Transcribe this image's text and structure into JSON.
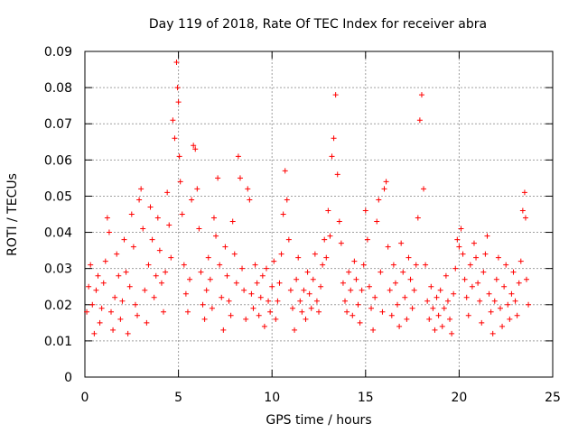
{
  "chart_data": {
    "type": "scatter",
    "title": "Day 119 of 2018, Rate Of TEC Index for receiver abra",
    "xlabel": "GPS time / hours",
    "ylabel": "ROTI / TECUs",
    "xlim": [
      0,
      25
    ],
    "ylim": [
      0,
      0.09
    ],
    "grid": true,
    "marker": "+",
    "color": "#ff0000",
    "x_ticks": [
      "0",
      "5",
      "10",
      "15",
      "20",
      "25"
    ],
    "y_ticks": [
      "0",
      "0.01",
      "0.02",
      "0.03",
      "0.04",
      "0.05",
      "0.06",
      "0.07",
      "0.08",
      "0.09"
    ],
    "series": [
      {
        "values": [
          [
            0.1,
            0.018
          ],
          [
            0.2,
            0.025
          ],
          [
            0.3,
            0.031
          ],
          [
            0.4,
            0.02
          ],
          [
            0.5,
            0.012
          ],
          [
            0.6,
            0.024
          ],
          [
            0.7,
            0.028
          ],
          [
            0.8,
            0.015
          ],
          [
            0.9,
            0.019
          ],
          [
            1.0,
            0.026
          ],
          [
            1.1,
            0.032
          ],
          [
            1.2,
            0.044
          ],
          [
            1.3,
            0.04
          ],
          [
            1.4,
            0.018
          ],
          [
            1.5,
            0.013
          ],
          [
            1.6,
            0.022
          ],
          [
            1.7,
            0.034
          ],
          [
            1.8,
            0.028
          ],
          [
            1.9,
            0.016
          ],
          [
            2.0,
            0.021
          ],
          [
            2.1,
            0.038
          ],
          [
            2.2,
            0.029
          ],
          [
            2.3,
            0.012
          ],
          [
            2.4,
            0.025
          ],
          [
            2.5,
            0.045
          ],
          [
            2.6,
            0.036
          ],
          [
            2.7,
            0.02
          ],
          [
            2.8,
            0.017
          ],
          [
            2.9,
            0.049
          ],
          [
            3.0,
            0.052
          ],
          [
            3.1,
            0.041
          ],
          [
            3.2,
            0.024
          ],
          [
            3.3,
            0.015
          ],
          [
            3.4,
            0.031
          ],
          [
            3.5,
            0.047
          ],
          [
            3.6,
            0.038
          ],
          [
            3.7,
            0.022
          ],
          [
            3.8,
            0.028
          ],
          [
            3.9,
            0.044
          ],
          [
            4.0,
            0.035
          ],
          [
            4.1,
            0.026
          ],
          [
            4.2,
            0.018
          ],
          [
            4.3,
            0.029
          ],
          [
            4.4,
            0.051
          ],
          [
            4.5,
            0.042
          ],
          [
            4.6,
            0.033
          ],
          [
            4.7,
            0.071
          ],
          [
            4.8,
            0.066
          ],
          [
            4.9,
            0.087
          ],
          [
            4.95,
            0.08
          ],
          [
            5.0,
            0.076
          ],
          [
            5.05,
            0.061
          ],
          [
            5.1,
            0.054
          ],
          [
            5.2,
            0.045
          ],
          [
            5.3,
            0.031
          ],
          [
            5.4,
            0.023
          ],
          [
            5.5,
            0.018
          ],
          [
            5.6,
            0.027
          ],
          [
            5.7,
            0.049
          ],
          [
            5.8,
            0.064
          ],
          [
            5.9,
            0.063
          ],
          [
            6.0,
            0.052
          ],
          [
            6.1,
            0.041
          ],
          [
            6.2,
            0.029
          ],
          [
            6.3,
            0.02
          ],
          [
            6.4,
            0.016
          ],
          [
            6.5,
            0.024
          ],
          [
            6.6,
            0.033
          ],
          [
            6.7,
            0.027
          ],
          [
            6.8,
            0.019
          ],
          [
            6.9,
            0.044
          ],
          [
            7.0,
            0.039
          ],
          [
            7.1,
            0.055
          ],
          [
            7.2,
            0.031
          ],
          [
            7.3,
            0.022
          ],
          [
            7.4,
            0.013
          ],
          [
            7.5,
            0.036
          ],
          [
            7.6,
            0.028
          ],
          [
            7.7,
            0.021
          ],
          [
            7.8,
            0.017
          ],
          [
            7.9,
            0.043
          ],
          [
            8.0,
            0.034
          ],
          [
            8.1,
            0.026
          ],
          [
            8.2,
            0.061
          ],
          [
            8.3,
            0.055
          ],
          [
            8.4,
            0.03
          ],
          [
            8.5,
            0.024
          ],
          [
            8.6,
            0.016
          ],
          [
            8.7,
            0.052
          ],
          [
            8.8,
            0.049
          ],
          [
            8.9,
            0.023
          ],
          [
            9.0,
            0.019
          ],
          [
            9.1,
            0.031
          ],
          [
            9.2,
            0.026
          ],
          [
            9.3,
            0.017
          ],
          [
            9.4,
            0.022
          ],
          [
            9.5,
            0.028
          ],
          [
            9.6,
            0.014
          ],
          [
            9.7,
            0.03
          ],
          [
            9.8,
            0.021
          ],
          [
            9.9,
            0.018
          ],
          [
            10.0,
            0.025
          ],
          [
            10.1,
            0.032
          ],
          [
            10.2,
            0.016
          ],
          [
            10.3,
            0.021
          ],
          [
            10.4,
            0.026
          ],
          [
            10.5,
            0.034
          ],
          [
            10.6,
            0.045
          ],
          [
            10.7,
            0.057
          ],
          [
            10.8,
            0.049
          ],
          [
            10.9,
            0.038
          ],
          [
            11.0,
            0.024
          ],
          [
            11.1,
            0.019
          ],
          [
            11.2,
            0.013
          ],
          [
            11.3,
            0.027
          ],
          [
            11.4,
            0.033
          ],
          [
            11.5,
            0.021
          ],
          [
            11.6,
            0.018
          ],
          [
            11.7,
            0.024
          ],
          [
            11.8,
            0.016
          ],
          [
            11.9,
            0.029
          ],
          [
            12.0,
            0.023
          ],
          [
            12.1,
            0.019
          ],
          [
            12.2,
            0.027
          ],
          [
            12.3,
            0.034
          ],
          [
            12.4,
            0.021
          ],
          [
            12.5,
            0.018
          ],
          [
            12.6,
            0.025
          ],
          [
            12.7,
            0.031
          ],
          [
            12.8,
            0.038
          ],
          [
            12.9,
            0.033
          ],
          [
            13.0,
            0.046
          ],
          [
            13.1,
            0.039
          ],
          [
            13.2,
            0.061
          ],
          [
            13.3,
            0.066
          ],
          [
            13.4,
            0.078
          ],
          [
            13.5,
            0.056
          ],
          [
            13.6,
            0.043
          ],
          [
            13.7,
            0.037
          ],
          [
            13.8,
            0.026
          ],
          [
            13.9,
            0.021
          ],
          [
            14.0,
            0.018
          ],
          [
            14.1,
            0.029
          ],
          [
            14.2,
            0.024
          ],
          [
            14.3,
            0.017
          ],
          [
            14.4,
            0.032
          ],
          [
            14.5,
            0.027
          ],
          [
            14.6,
            0.02
          ],
          [
            14.7,
            0.015
          ],
          [
            14.8,
            0.024
          ],
          [
            14.9,
            0.031
          ],
          [
            15.0,
            0.046
          ],
          [
            15.1,
            0.038
          ],
          [
            15.2,
            0.025
          ],
          [
            15.3,
            0.019
          ],
          [
            15.4,
            0.013
          ],
          [
            15.5,
            0.022
          ],
          [
            15.6,
            0.043
          ],
          [
            15.7,
            0.049
          ],
          [
            15.8,
            0.029
          ],
          [
            15.9,
            0.018
          ],
          [
            16.0,
            0.052
          ],
          [
            16.1,
            0.054
          ],
          [
            16.2,
            0.036
          ],
          [
            16.3,
            0.024
          ],
          [
            16.4,
            0.017
          ],
          [
            16.5,
            0.031
          ],
          [
            16.6,
            0.026
          ],
          [
            16.7,
            0.02
          ],
          [
            16.8,
            0.014
          ],
          [
            16.9,
            0.037
          ],
          [
            17.0,
            0.029
          ],
          [
            17.1,
            0.022
          ],
          [
            17.2,
            0.016
          ],
          [
            17.3,
            0.033
          ],
          [
            17.4,
            0.027
          ],
          [
            17.5,
            0.019
          ],
          [
            17.6,
            0.024
          ],
          [
            17.7,
            0.031
          ],
          [
            17.8,
            0.044
          ],
          [
            17.9,
            0.071
          ],
          [
            18.0,
            0.078
          ],
          [
            18.1,
            0.052
          ],
          [
            18.2,
            0.031
          ],
          [
            18.3,
            0.021
          ],
          [
            18.4,
            0.016
          ],
          [
            18.5,
            0.025
          ],
          [
            18.6,
            0.019
          ],
          [
            18.7,
            0.013
          ],
          [
            18.8,
            0.022
          ],
          [
            18.9,
            0.017
          ],
          [
            19.0,
            0.024
          ],
          [
            19.1,
            0.014
          ],
          [
            19.2,
            0.019
          ],
          [
            19.3,
            0.028
          ],
          [
            19.4,
            0.021
          ],
          [
            19.5,
            0.016
          ],
          [
            19.6,
            0.012
          ],
          [
            19.7,
            0.023
          ],
          [
            19.8,
            0.03
          ],
          [
            19.9,
            0.038
          ],
          [
            20.0,
            0.036
          ],
          [
            20.1,
            0.041
          ],
          [
            20.2,
            0.034
          ],
          [
            20.3,
            0.027
          ],
          [
            20.4,
            0.022
          ],
          [
            20.5,
            0.017
          ],
          [
            20.6,
            0.031
          ],
          [
            20.7,
            0.025
          ],
          [
            20.8,
            0.037
          ],
          [
            20.9,
            0.033
          ],
          [
            21.0,
            0.026
          ],
          [
            21.1,
            0.021
          ],
          [
            21.2,
            0.015
          ],
          [
            21.3,
            0.029
          ],
          [
            21.4,
            0.034
          ],
          [
            21.5,
            0.039
          ],
          [
            21.6,
            0.023
          ],
          [
            21.7,
            0.018
          ],
          [
            21.8,
            0.012
          ],
          [
            21.9,
            0.021
          ],
          [
            22.0,
            0.027
          ],
          [
            22.1,
            0.033
          ],
          [
            22.2,
            0.019
          ],
          [
            22.3,
            0.014
          ],
          [
            22.4,
            0.025
          ],
          [
            22.5,
            0.031
          ],
          [
            22.6,
            0.02
          ],
          [
            22.7,
            0.016
          ],
          [
            22.8,
            0.023
          ],
          [
            22.9,
            0.029
          ],
          [
            23.0,
            0.021
          ],
          [
            23.1,
            0.017
          ],
          [
            23.2,
            0.026
          ],
          [
            23.3,
            0.032
          ],
          [
            23.4,
            0.046
          ],
          [
            23.5,
            0.051
          ],
          [
            23.55,
            0.044
          ],
          [
            23.6,
            0.027
          ],
          [
            23.7,
            0.02
          ]
        ]
      }
    ]
  }
}
